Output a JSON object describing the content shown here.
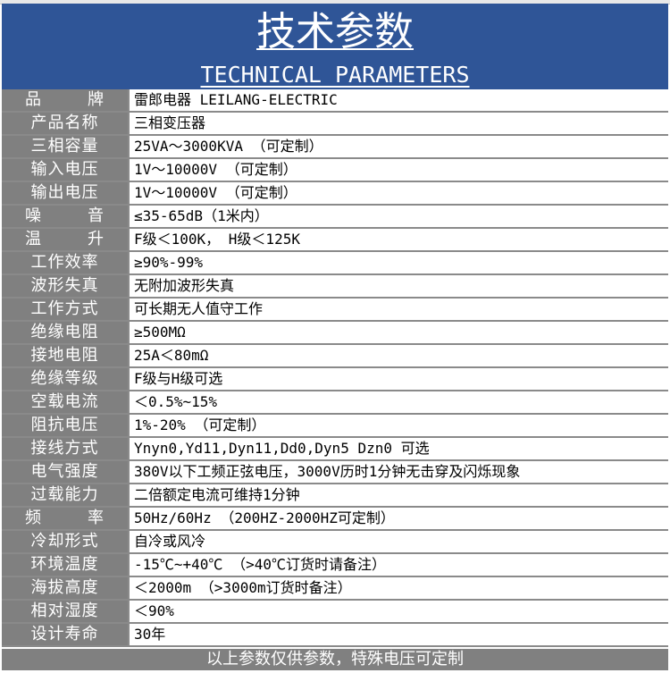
{
  "header": {
    "title": "技术参数",
    "subtitle": "TECHNICAL PARAMETERS"
  },
  "rows": [
    {
      "label": "品　　牌",
      "value": "雷郎电器 LEILANG-ELECTRIC"
    },
    {
      "label": "产品名称",
      "value": "三相变压器"
    },
    {
      "label": "三相容量",
      "value": "25VA～3000KVA （可定制）"
    },
    {
      "label": "输入电压",
      "value": "1V～10000V （可定制）"
    },
    {
      "label": "输出电压",
      "value": "1V～10000V （可定制）"
    },
    {
      "label": "噪　　音",
      "value": "≤35-65dB（1米内）"
    },
    {
      "label": "温　　升",
      "value": "F级＜100K， H级＜125K"
    },
    {
      "label": "工作效率",
      "value": "≥90%-99%"
    },
    {
      "label": "波形失真",
      "value": "无附加波形失真"
    },
    {
      "label": "工作方式",
      "value": "可长期无人值守工作"
    },
    {
      "label": "绝缘电阻",
      "value": "≥500MΩ"
    },
    {
      "label": "接地电阻",
      "value": "25A＜80mΩ"
    },
    {
      "label": "绝缘等级",
      "value": "F级与H级可选"
    },
    {
      "label": "空载电流",
      "value": "＜0.5%~15%"
    },
    {
      "label": "阻抗电压",
      "value": "1%-20% （可定制）"
    },
    {
      "label": "接线方式",
      "value": "Ynyn0,Yd11,Dyn11,Dd0,Dyn5 Dzn0 可选"
    },
    {
      "label": "电气强度",
      "value": "380V以下工频正弦电压，3000V历时1分钟无击穿及闪烁现象"
    },
    {
      "label": "过载能力",
      "value": "二倍额定电流可维持1分钟"
    },
    {
      "label": "频　　率",
      "value": "50Hz/60Hz  （200HZ-2000HZ可定制）"
    },
    {
      "label": "冷却形式",
      "value": "自冷或风冷"
    },
    {
      "label": "环境温度",
      "value": "-15℃~+40℃  （>40℃订货时请备注）"
    },
    {
      "label": "海拔高度",
      "value": "＜2000m （>3000m订货时备注）"
    },
    {
      "label": "相对湿度",
      "value": "＜90%"
    },
    {
      "label": "设计寿命",
      "value": "30年"
    }
  ],
  "footer": "以上参数仅供参数，特殊电压可定制",
  "colors": {
    "header_bg": "#2f5597",
    "label_bg": "#808080"
  }
}
